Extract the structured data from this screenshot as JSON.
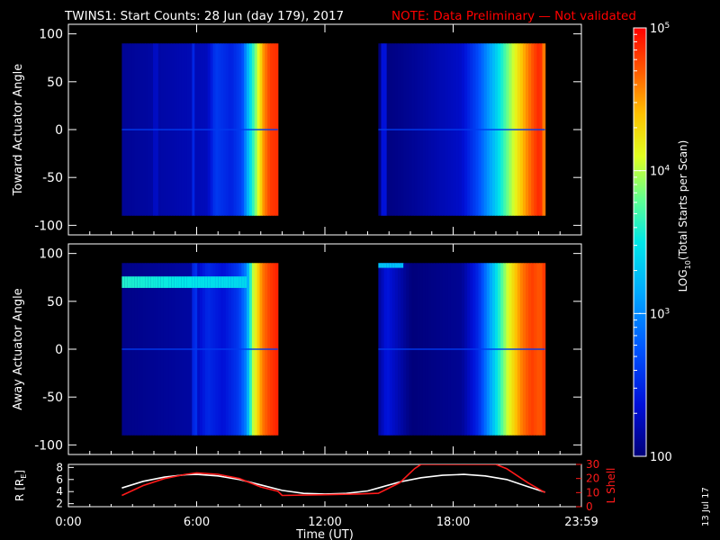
{
  "header": {
    "title": "TWINS1: Start Counts: 28 Jun (day 179), 2017",
    "note": "NOTE: Data Preliminary — Not validated"
  },
  "colors": {
    "background": "#000000",
    "axes": "#ffffff",
    "note": "#ff0000",
    "r_line": "#ffffff",
    "lshell_line": "#ff1a1a"
  },
  "side_stamp": "13 Jul 17",
  "colorbar": {
    "label_main": "LOG",
    "label_sub": "10",
    "label_rest": "(Total Starts per Scan)",
    "scale": "log",
    "range": [
      100,
      100000
    ],
    "ticks": [
      {
        "value": 100,
        "base": "100",
        "exp": ""
      },
      {
        "value": 1000,
        "base": "10",
        "exp": "3"
      },
      {
        "value": 10000,
        "base": "10",
        "exp": "4"
      },
      {
        "value": 100000,
        "base": "10",
        "exp": "5"
      }
    ]
  },
  "chart_data": [
    {
      "type": "heatmap",
      "ylabel": "Toward Actuator Angle",
      "ylim": [
        -110,
        110
      ],
      "yticks": [
        -100,
        -50,
        0,
        50,
        100
      ],
      "xlim": [
        0,
        24
      ],
      "angle_range": [
        -90,
        90
      ],
      "data_intervals": [
        {
          "start": 2.5,
          "end": 9.8,
          "profile": [
            [
              0,
              2.1
            ],
            [
              0.55,
              2.25
            ],
            [
              0.6,
              2.6
            ],
            [
              0.7,
              2.45
            ],
            [
              0.77,
              2.65
            ],
            [
              0.8,
              3.1
            ],
            [
              0.86,
              3.9
            ],
            [
              0.91,
              4.55
            ],
            [
              0.95,
              4.8
            ],
            [
              1,
              4.85
            ]
          ],
          "features": [
            {
              "center": 0.22,
              "width": 0.02,
              "delta": 0.12
            },
            {
              "center": 0.46,
              "width": 0.01,
              "delta": 0.25
            }
          ]
        },
        {
          "start": 14.5,
          "end": 22.3,
          "profile": [
            [
              0,
              2.0
            ],
            [
              0.2,
              2.1
            ],
            [
              0.5,
              2.3
            ],
            [
              0.6,
              2.7
            ],
            [
              0.7,
              3.3
            ],
            [
              0.8,
              4.0
            ],
            [
              0.88,
              4.5
            ],
            [
              0.93,
              4.75
            ],
            [
              0.97,
              4.9
            ],
            [
              1,
              4.5
            ]
          ],
          "features": [
            {
              "center": 0.03,
              "width": 0.02,
              "delta": 0.35
            }
          ]
        }
      ]
    },
    {
      "type": "heatmap",
      "ylabel": "Away Actuator Angle",
      "ylim": [
        -110,
        110
      ],
      "yticks": [
        -100,
        -50,
        0,
        50,
        100
      ],
      "xlim": [
        0,
        24
      ],
      "angle_range": [
        -90,
        90
      ],
      "data_intervals": [
        {
          "start": 2.5,
          "end": 9.8,
          "profile": [
            [
              0,
              2.05
            ],
            [
              0.45,
              2.15
            ],
            [
              0.55,
              2.5
            ],
            [
              0.65,
              2.35
            ],
            [
              0.75,
              2.6
            ],
            [
              0.8,
              3.0
            ],
            [
              0.84,
              4.0
            ],
            [
              0.9,
              4.6
            ],
            [
              0.95,
              4.8
            ],
            [
              1,
              4.9
            ]
          ],
          "features": [
            {
              "center": 0.46,
              "width": 0.015,
              "delta": 0.3
            }
          ],
          "band": {
            "angle_center": 70,
            "angle_width": 12,
            "value": 3.6,
            "until": 0.8
          }
        },
        {
          "start": 14.5,
          "end": 22.3,
          "profile": [
            [
              0,
              2.1
            ],
            [
              0.05,
              2.4
            ],
            [
              0.2,
              2.0
            ],
            [
              0.5,
              2.1
            ],
            [
              0.6,
              2.5
            ],
            [
              0.68,
              3.2
            ],
            [
              0.78,
              4.1
            ],
            [
              0.86,
              4.6
            ],
            [
              0.92,
              4.8
            ],
            [
              0.97,
              4.7
            ],
            [
              1,
              4.85
            ]
          ],
          "features": [],
          "band": {
            "angle_center": 88,
            "angle_width": 6,
            "value": 3.3,
            "until": 0.15
          }
        }
      ]
    },
    {
      "type": "line",
      "xlabel": "Time (UT)",
      "xticks": [
        "0:00",
        "6:00",
        "12:00",
        "18:00",
        "23:59"
      ],
      "xtick_values": [
        0,
        6,
        12,
        18,
        24
      ],
      "left_axis": {
        "label": "R [R",
        "label_sub": "E",
        "label_end": "]",
        "ylim": [
          1.5,
          8.5
        ],
        "ticks": [
          2,
          4,
          6,
          8
        ]
      },
      "right_axis": {
        "label": "L Shell",
        "ylim": [
          0,
          30
        ],
        "ticks": [
          0,
          10,
          20,
          30
        ]
      },
      "series": [
        {
          "axis": "left",
          "x": [
            2.5,
            3.5,
            4.5,
            5.5,
            6.0,
            7.0,
            8.0,
            9.0,
            10.0,
            11.0,
            12.0,
            13.0,
            14.0,
            14.5,
            15.5,
            16.5,
            17.5,
            18.5,
            19.5,
            20.5,
            21.5,
            22.3
          ],
          "y": [
            4.6,
            5.7,
            6.4,
            6.8,
            6.85,
            6.6,
            6.0,
            5.1,
            4.2,
            3.7,
            3.6,
            3.7,
            4.1,
            4.6,
            5.6,
            6.3,
            6.7,
            6.85,
            6.6,
            6.0,
            4.8,
            3.9
          ]
        },
        {
          "axis": "right",
          "x": [
            2.5,
            3.5,
            4.5,
            5.5,
            6.0,
            7.0,
            8.0,
            9.0,
            9.8,
            10.0,
            12.0,
            13.5,
            14.5,
            15.5,
            16.2,
            16.5,
            20.0,
            20.5,
            21.5,
            22.3
          ],
          "y": [
            8,
            15,
            20,
            23,
            24,
            23,
            20,
            14,
            11,
            8,
            8.5,
            9,
            9.5,
            17,
            27,
            30,
            30,
            27,
            17,
            10
          ]
        }
      ]
    }
  ]
}
